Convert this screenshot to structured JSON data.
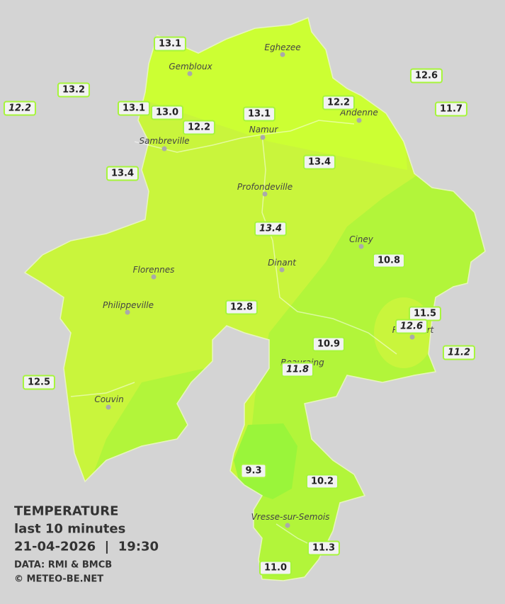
{
  "cities": [
    "Eghezee",
    "Gembloux",
    "Andenne",
    "Namur",
    "Sambreville",
    "Profondeville",
    "Ciney",
    "Dinant",
    "Florennes",
    "Philippeville",
    "Rochefort",
    "Beauraing",
    "Couvin",
    "Vresse-sur-Semois"
  ],
  "stations": [
    "13.1",
    "13.2",
    "12.2",
    "13.1",
    "13.0",
    "12.2",
    "13.1",
    "12.2",
    "12.6",
    "11.7",
    "13.4",
    "13.4",
    "13.4",
    "10.8",
    "12.8",
    "11.5",
    "12.6",
    "10.9",
    "11.8",
    "11.2",
    "12.5",
    "9.3",
    "10.2",
    "11.3",
    "11.0"
  ],
  "legend": {
    "title": "TEMPERATURE",
    "subtitle": "last 10 minutes",
    "datetime": "21-04-2026  |  19:30",
    "source": "DATA: RMI & BMCB",
    "copyright": "© METEO-BE.NET"
  }
}
